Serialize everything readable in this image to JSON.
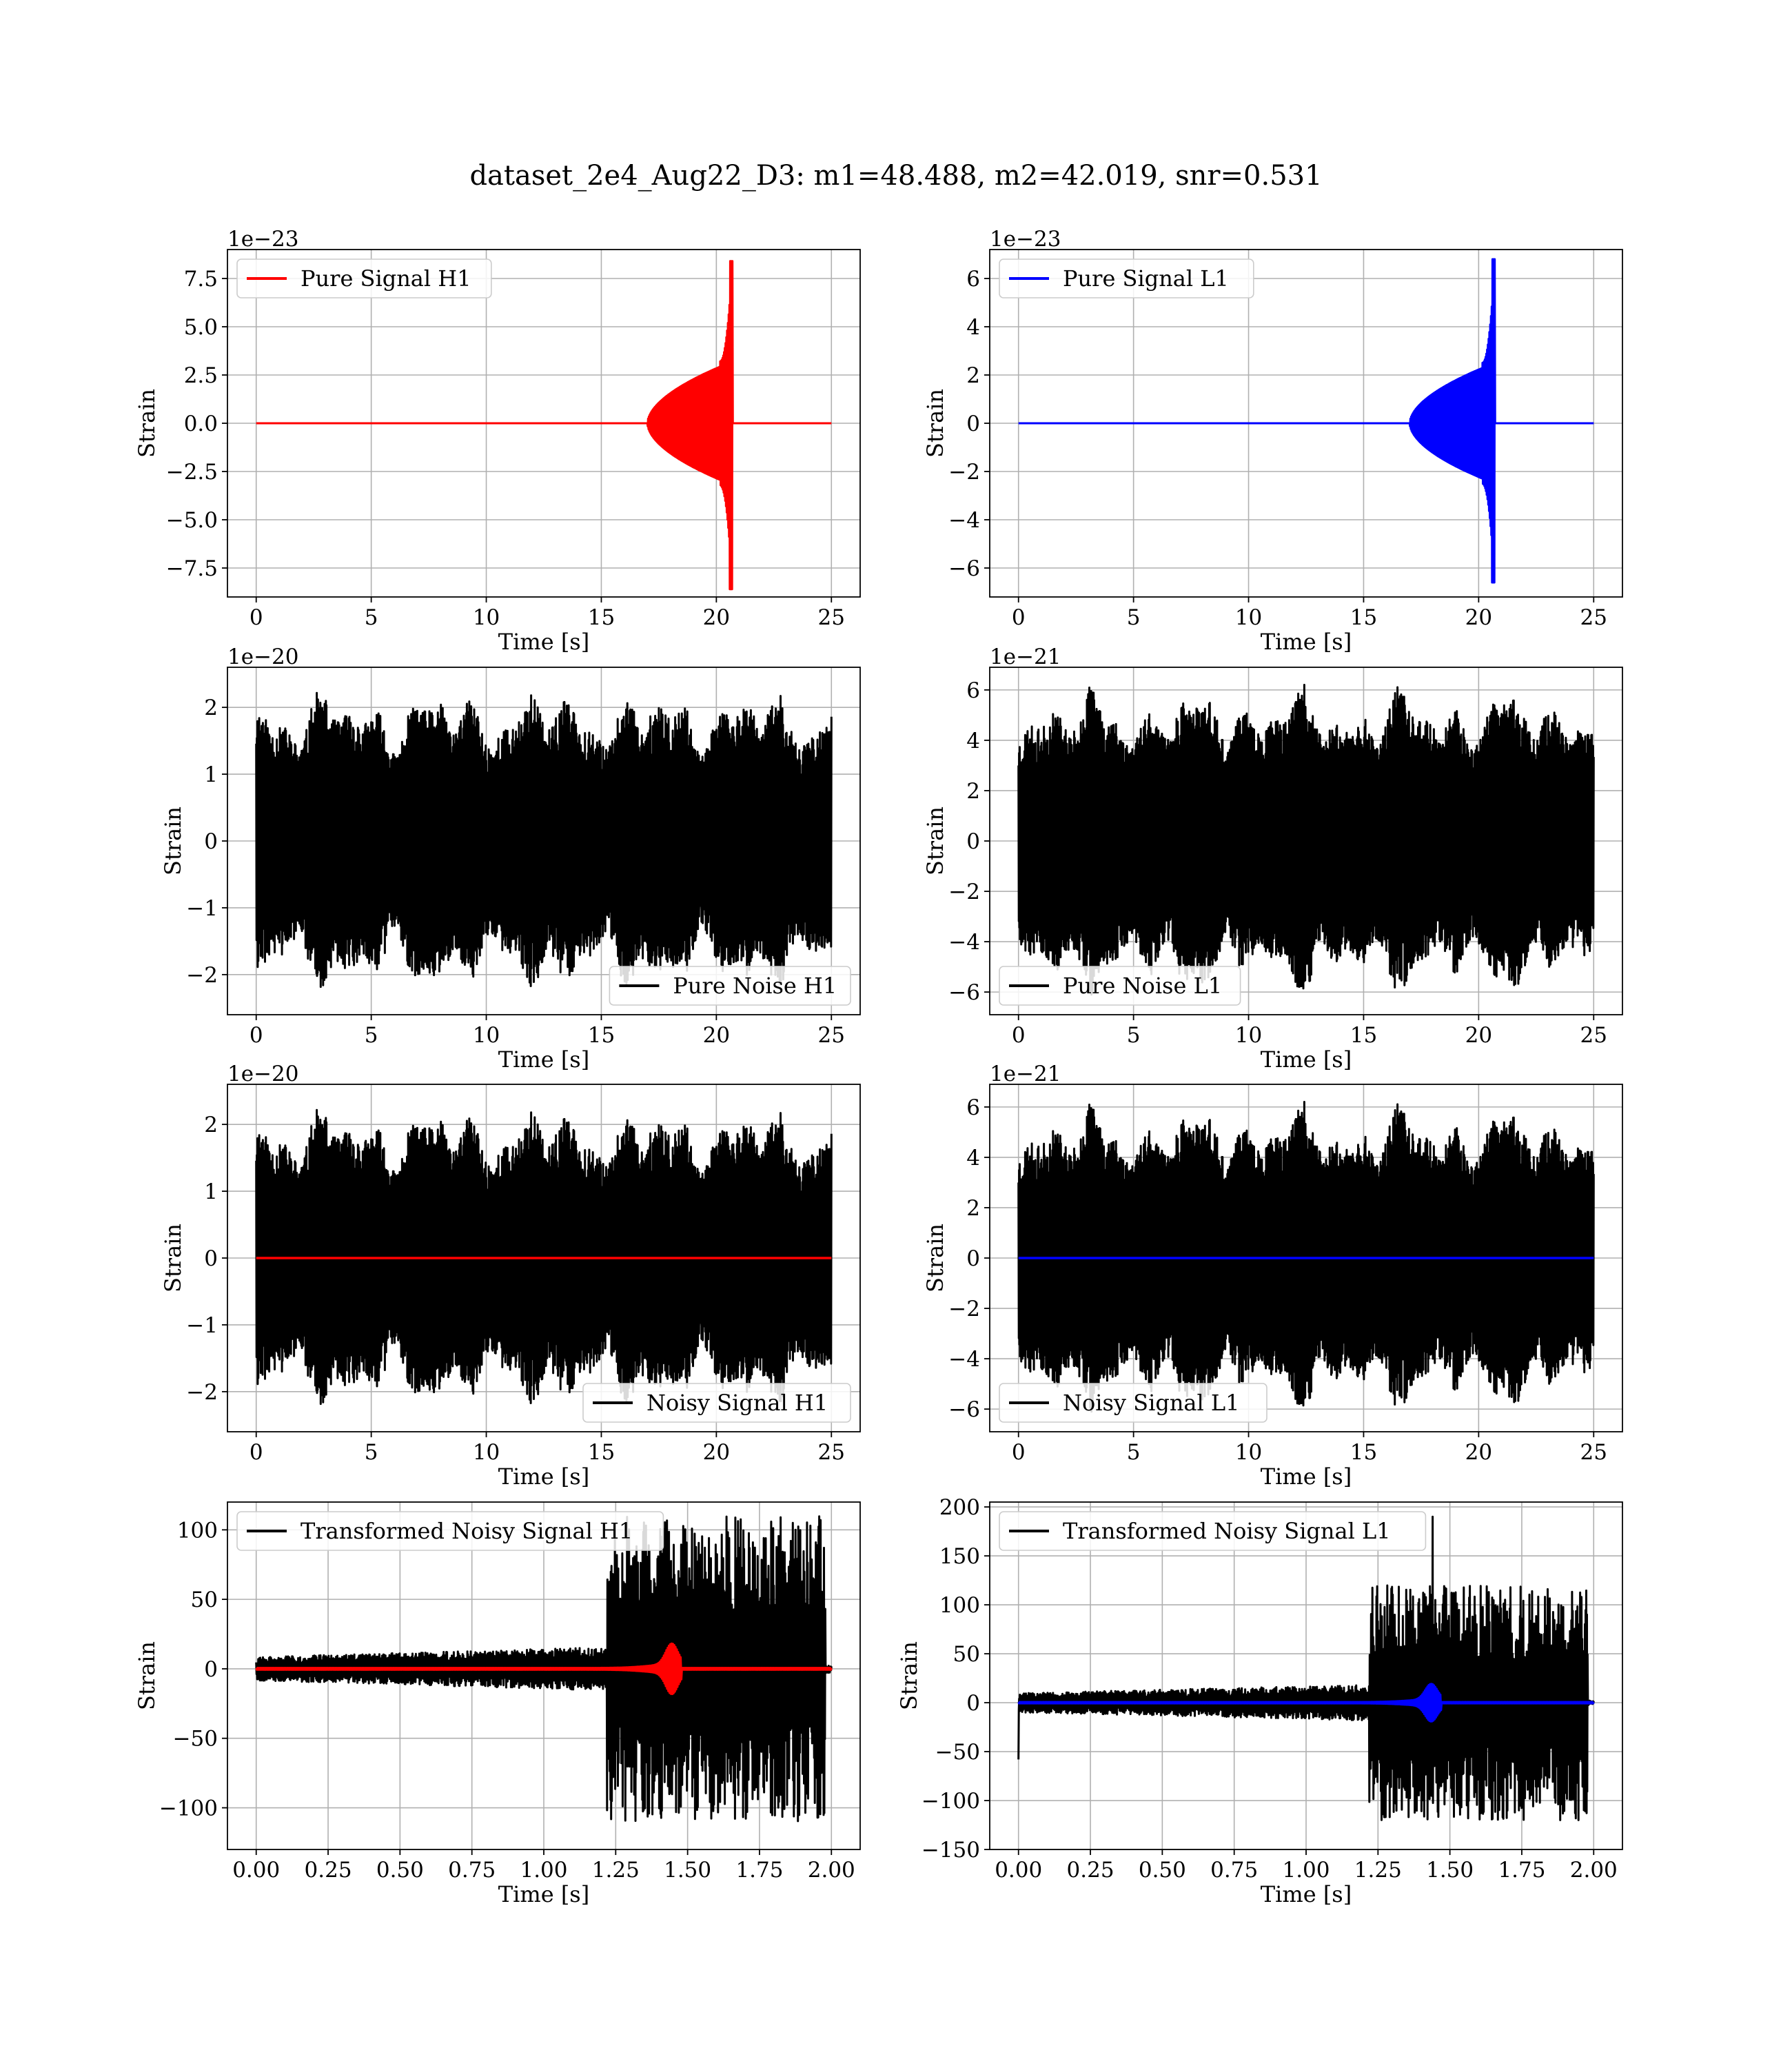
{
  "figure": {
    "suptitle": "dataset_2e4_Aug22_D3: m1=48.488, m2=42.019, snr=0.531"
  },
  "chart_data": [
    {
      "id": "pure-signal-h1",
      "type": "line",
      "xlabel": "Time [s]",
      "ylabel": "Strain",
      "offset_text": "1e−23",
      "xlim": [
        -1.25,
        26.25
      ],
      "ylim": [
        -9.0,
        9.0
      ],
      "xticks": [
        0,
        5,
        10,
        15,
        20,
        25
      ],
      "xtick_labels": [
        "0",
        "5",
        "10",
        "15",
        "20",
        "25"
      ],
      "yticks": [
        -7.5,
        -5.0,
        -2.5,
        0.0,
        2.5,
        5.0,
        7.5
      ],
      "ytick_labels": [
        "−7.5",
        "−5.0",
        "−2.5",
        "0.0",
        "2.5",
        "5.0",
        "7.5"
      ],
      "grid": true,
      "legend": {
        "entries": [
          "Pure Signal H1"
        ],
        "location": "upper left"
      },
      "series": [
        {
          "name": "Pure Signal H1",
          "color": "#ff0000",
          "kind": "chirp",
          "x_range": [
            0,
            25
          ],
          "merger_time": 20.7,
          "inspiral_amplitude": 3.2,
          "peak": 8.4,
          "trough": -8.6,
          "onset": 17.0
        }
      ]
    },
    {
      "id": "pure-signal-l1",
      "type": "line",
      "xlabel": "Time [s]",
      "ylabel": "Strain",
      "offset_text": "1e−23",
      "xlim": [
        -1.25,
        26.25
      ],
      "ylim": [
        -7.2,
        7.2
      ],
      "xticks": [
        0,
        5,
        10,
        15,
        20,
        25
      ],
      "xtick_labels": [
        "0",
        "5",
        "10",
        "15",
        "20",
        "25"
      ],
      "yticks": [
        -6,
        -4,
        -2,
        0,
        2,
        4,
        6
      ],
      "ytick_labels": [
        "−6",
        "−4",
        "−2",
        "0",
        "2",
        "4",
        "6"
      ],
      "grid": true,
      "legend": {
        "entries": [
          "Pure Signal L1"
        ],
        "location": "upper left"
      },
      "series": [
        {
          "name": "Pure Signal L1",
          "color": "#0000ff",
          "kind": "chirp",
          "x_range": [
            0,
            25
          ],
          "merger_time": 20.7,
          "inspiral_amplitude": 2.5,
          "peak": 6.8,
          "trough": -6.6,
          "onset": 17.0
        }
      ]
    },
    {
      "id": "pure-noise-h1",
      "type": "line",
      "xlabel": "Time [s]",
      "ylabel": "Strain",
      "offset_text": "1e−20",
      "xlim": [
        -1.25,
        26.25
      ],
      "ylim": [
        -2.6,
        2.6
      ],
      "xticks": [
        0,
        5,
        10,
        15,
        20,
        25
      ],
      "xtick_labels": [
        "0",
        "5",
        "10",
        "15",
        "20",
        "25"
      ],
      "yticks": [
        -2,
        -1,
        0,
        1,
        2
      ],
      "ytick_labels": [
        "−2",
        "−1",
        "0",
        "1",
        "2"
      ],
      "grid": true,
      "legend": {
        "entries": [
          "Pure Noise H1"
        ],
        "location": "lower right"
      },
      "series": [
        {
          "name": "Pure Noise H1",
          "color": "#000000",
          "kind": "noise",
          "x_range": [
            0,
            25
          ],
          "base_amplitude": 1.2,
          "max_amplitude": 2.35,
          "seed": 11
        }
      ]
    },
    {
      "id": "pure-noise-l1",
      "type": "line",
      "xlabel": "Time [s]",
      "ylabel": "Strain",
      "offset_text": "1e−21",
      "xlim": [
        -1.25,
        26.25
      ],
      "ylim": [
        -6.9,
        6.9
      ],
      "xticks": [
        0,
        5,
        10,
        15,
        20,
        25
      ],
      "xtick_labels": [
        "0",
        "5",
        "10",
        "15",
        "20",
        "25"
      ],
      "yticks": [
        -6,
        -4,
        -2,
        0,
        2,
        4,
        6
      ],
      "ytick_labels": [
        "−6",
        "−4",
        "−2",
        "0",
        "2",
        "4",
        "6"
      ],
      "grid": true,
      "legend": {
        "entries": [
          "Pure Noise L1"
        ],
        "location": "lower left"
      },
      "series": [
        {
          "name": "Pure Noise L1",
          "color": "#000000",
          "kind": "noise",
          "x_range": [
            0,
            25
          ],
          "base_amplitude": 3.2,
          "max_amplitude": 6.3,
          "seed": 23
        }
      ]
    },
    {
      "id": "noisy-signal-h1",
      "type": "line",
      "xlabel": "Time [s]",
      "ylabel": "Strain",
      "offset_text": "1e−20",
      "xlim": [
        -1.25,
        26.25
      ],
      "ylim": [
        -2.6,
        2.6
      ],
      "xticks": [
        0,
        5,
        10,
        15,
        20,
        25
      ],
      "xtick_labels": [
        "0",
        "5",
        "10",
        "15",
        "20",
        "25"
      ],
      "yticks": [
        -2,
        -1,
        0,
        1,
        2
      ],
      "ytick_labels": [
        "−2",
        "−1",
        "0",
        "1",
        "2"
      ],
      "grid": true,
      "legend": {
        "entries": [
          "Noisy Signal H1"
        ],
        "location": "lower right"
      },
      "series": [
        {
          "name": "Noisy Signal H1",
          "color": "#000000",
          "kind": "noise",
          "x_range": [
            0,
            25
          ],
          "base_amplitude": 1.2,
          "max_amplitude": 2.35,
          "seed": 11
        },
        {
          "name": "",
          "color": "#ff0000",
          "kind": "flat",
          "x_range": [
            0,
            25
          ],
          "value": 0
        }
      ]
    },
    {
      "id": "noisy-signal-l1",
      "type": "line",
      "xlabel": "Time [s]",
      "ylabel": "Strain",
      "offset_text": "1e−21",
      "xlim": [
        -1.25,
        26.25
      ],
      "ylim": [
        -6.9,
        6.9
      ],
      "xticks": [
        0,
        5,
        10,
        15,
        20,
        25
      ],
      "xtick_labels": [
        "0",
        "5",
        "10",
        "15",
        "20",
        "25"
      ],
      "yticks": [
        -6,
        -4,
        -2,
        0,
        2,
        4,
        6
      ],
      "ytick_labels": [
        "−6",
        "−4",
        "−2",
        "0",
        "2",
        "4",
        "6"
      ],
      "grid": true,
      "legend": {
        "entries": [
          "Noisy Signal L1"
        ],
        "location": "lower left"
      },
      "series": [
        {
          "name": "Noisy Signal L1",
          "color": "#000000",
          "kind": "noise",
          "x_range": [
            0,
            25
          ],
          "base_amplitude": 3.2,
          "max_amplitude": 6.3,
          "seed": 23
        },
        {
          "name": "",
          "color": "#0000ff",
          "kind": "flat",
          "x_range": [
            0,
            25
          ],
          "value": 0
        }
      ]
    },
    {
      "id": "transformed-noisy-signal-h1",
      "type": "line",
      "xlabel": "Time [s]",
      "ylabel": "Strain",
      "offset_text": "",
      "xlim": [
        -0.1,
        2.1
      ],
      "ylim": [
        -130,
        120
      ],
      "xticks": [
        0.0,
        0.25,
        0.5,
        0.75,
        1.0,
        1.25,
        1.5,
        1.75,
        2.0
      ],
      "xtick_labels": [
        "0.00",
        "0.25",
        "0.50",
        "0.75",
        "1.00",
        "1.25",
        "1.50",
        "1.75",
        "2.00"
      ],
      "yticks": [
        -100,
        -50,
        0,
        50,
        100
      ],
      "ytick_labels": [
        "−100",
        "−50",
        "0",
        "50",
        "100"
      ],
      "grid": true,
      "legend": {
        "entries": [
          "Transformed Noisy Signal H1"
        ],
        "location": "upper left"
      },
      "series": [
        {
          "name": "Transformed Noisy Signal H1",
          "color": "#000000",
          "kind": "whitened",
          "x_range": [
            0,
            2.0
          ],
          "low_amplitude": 12,
          "high_start": 1.22,
          "high_amplitude": 110,
          "seed": 31
        },
        {
          "name": "",
          "color": "#ff0000",
          "kind": "burst",
          "x_range": [
            0,
            2.0
          ],
          "center": 1.45,
          "amplitude": 15
        }
      ]
    },
    {
      "id": "transformed-noisy-signal-l1",
      "type": "line",
      "xlabel": "Time [s]",
      "ylabel": "Strain",
      "offset_text": "",
      "xlim": [
        -0.1,
        2.1
      ],
      "ylim": [
        -150,
        205
      ],
      "xticks": [
        0.0,
        0.25,
        0.5,
        0.75,
        1.0,
        1.25,
        1.5,
        1.75,
        2.0
      ],
      "xtick_labels": [
        "0.00",
        "0.25",
        "0.50",
        "0.75",
        "1.00",
        "1.25",
        "1.50",
        "1.75",
        "2.00"
      ],
      "yticks": [
        -150,
        -100,
        -50,
        0,
        50,
        100,
        150,
        200
      ],
      "ytick_labels": [
        "−150",
        "−100",
        "−50",
        "0",
        "50",
        "100",
        "150",
        "200"
      ],
      "grid": true,
      "legend": {
        "entries": [
          "Transformed Noisy Signal L1"
        ],
        "location": "upper left"
      },
      "series": [
        {
          "name": "Transformed Noisy Signal L1",
          "color": "#000000",
          "kind": "whitened",
          "x_range": [
            0,
            2.0
          ],
          "low_amplitude": 14,
          "high_start": 1.22,
          "high_amplitude": 120,
          "seed": 47,
          "spikes": [
            {
              "x": 1.44,
              "y": 190
            },
            {
              "x": 0.0,
              "y": -58
            }
          ]
        },
        {
          "name": "",
          "color": "#0000ff",
          "kind": "burst",
          "x_range": [
            0,
            2.0
          ],
          "center": 1.44,
          "amplitude": 16
        }
      ]
    }
  ]
}
